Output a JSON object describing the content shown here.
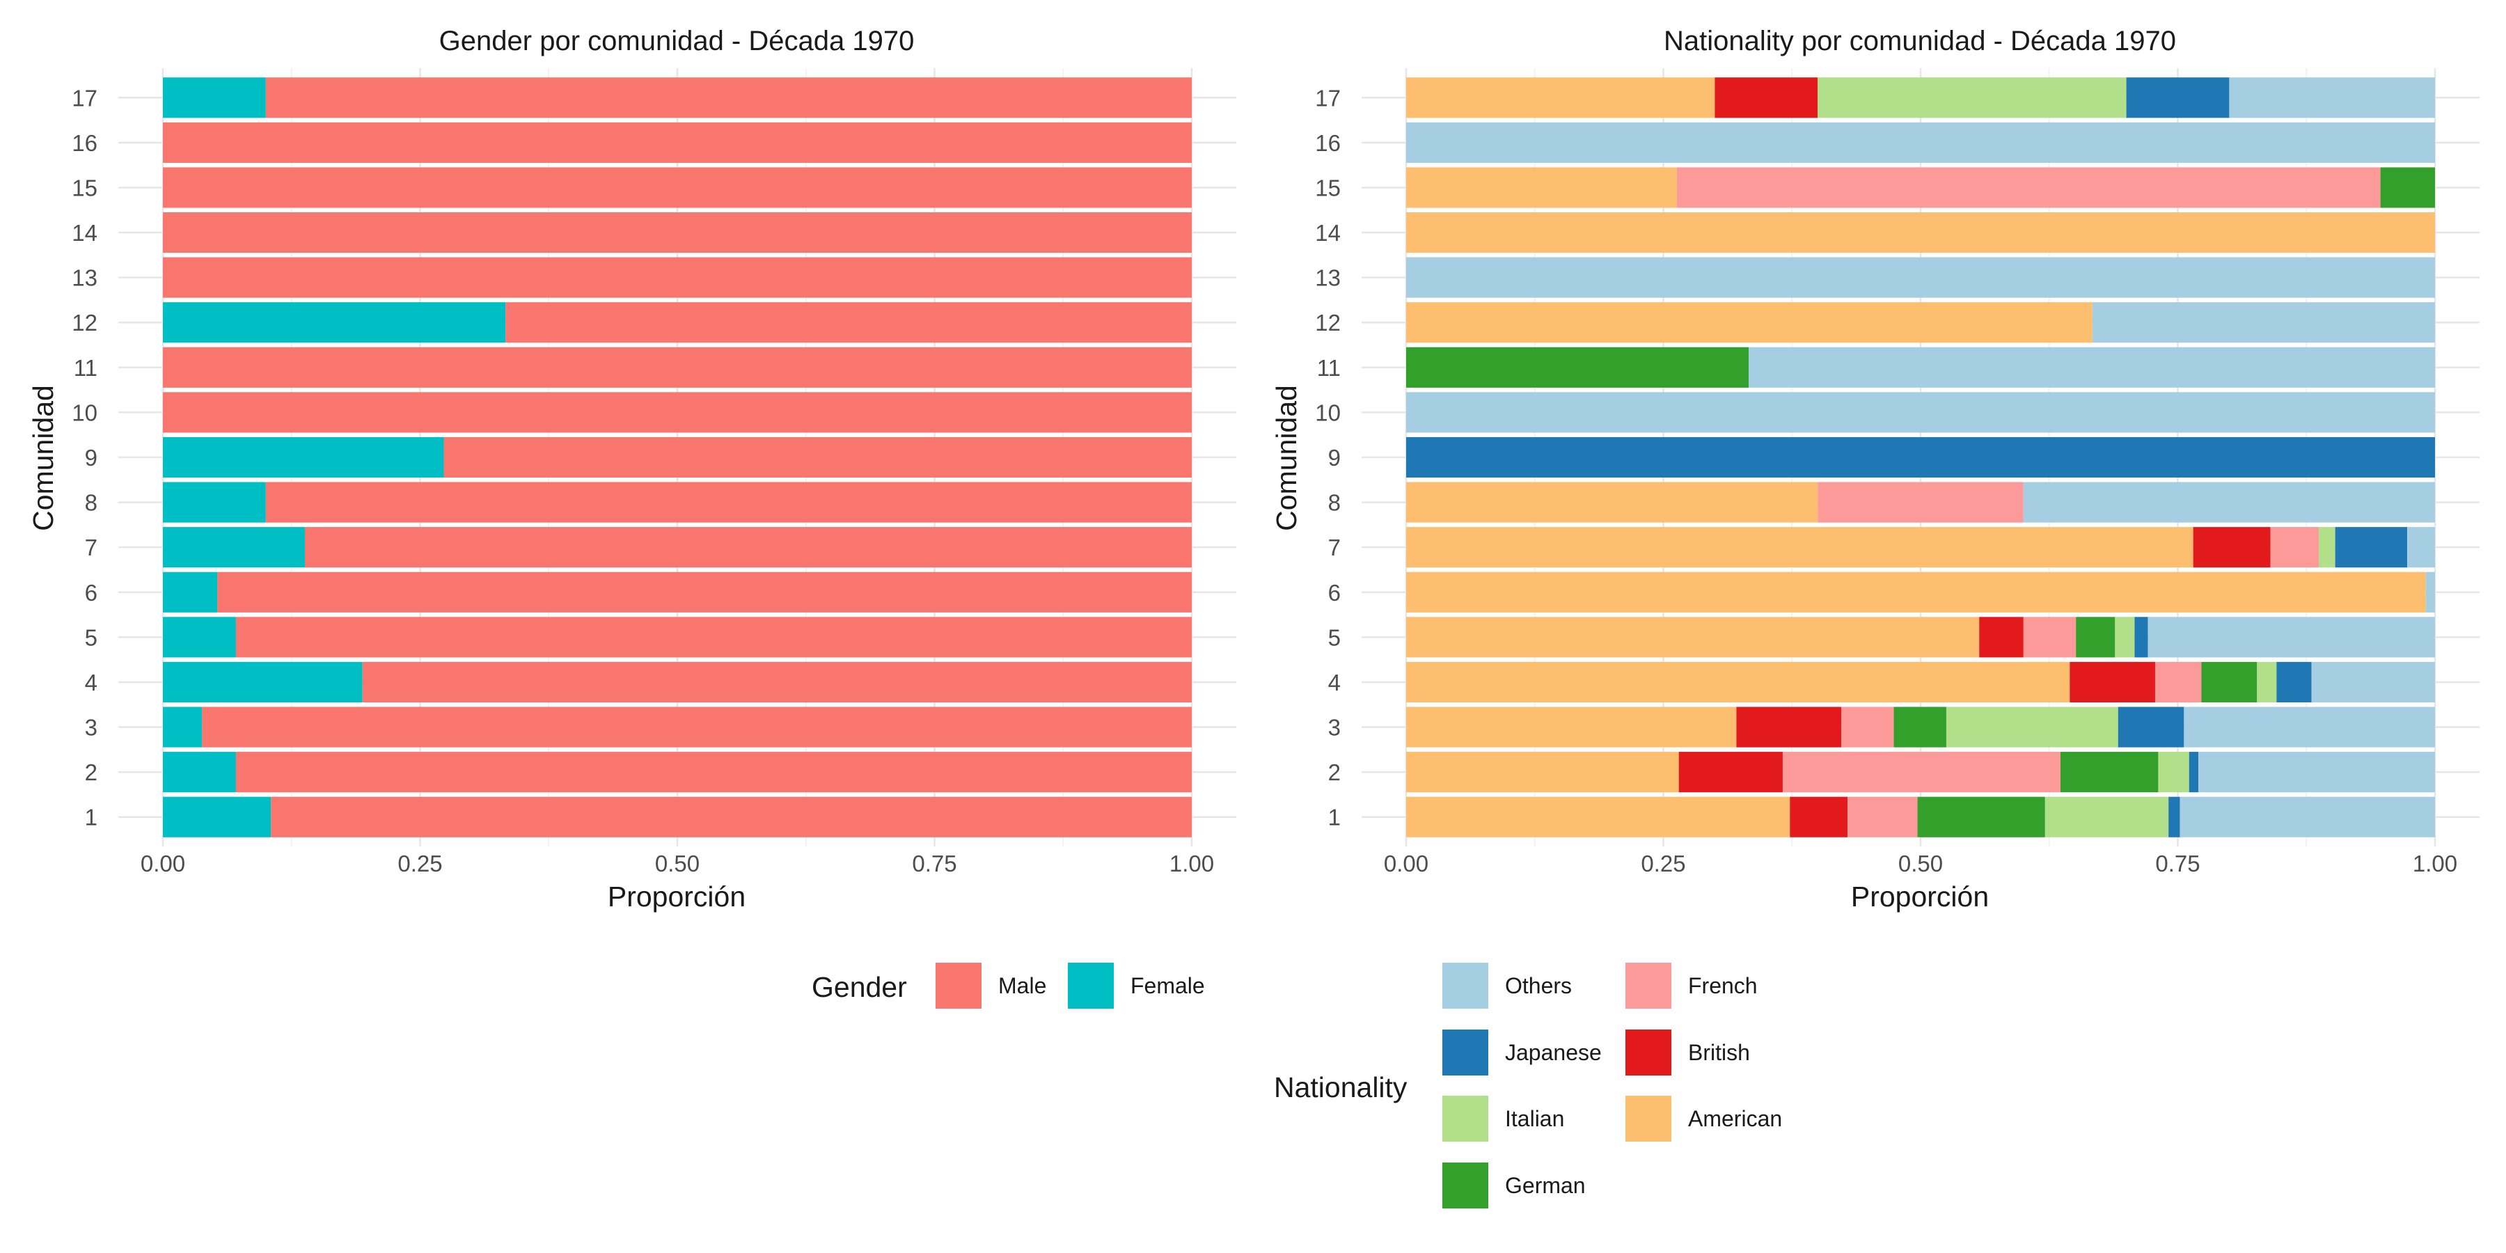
{
  "chart_data": [
    {
      "type": "bar",
      "orientation": "horizontal",
      "stacked": true,
      "title": "Gender por comunidad - Década 1970",
      "xlabel": "Proporción",
      "ylabel": "Comunidad",
      "xlim": [
        0,
        1
      ],
      "xticks": [
        "0.00",
        "0.25",
        "0.50",
        "0.75",
        "1.00"
      ],
      "grid": true,
      "legend_position": "bottom",
      "legend_title": "Gender",
      "categories": [
        "1",
        "2",
        "3",
        "4",
        "5",
        "6",
        "7",
        "8",
        "9",
        "10",
        "11",
        "12",
        "13",
        "14",
        "15",
        "16",
        "17"
      ],
      "series": [
        {
          "name": "Female",
          "color": "#00BFC4",
          "values": [
            0.105,
            0.071,
            0.038,
            0.194,
            0.071,
            0.053,
            0.138,
            0.1,
            0.273,
            0,
            0,
            0.333,
            0,
            0,
            0,
            0,
            0.1
          ]
        },
        {
          "name": "Male",
          "color": "#F8766D",
          "values": [
            0.895,
            0.929,
            0.962,
            0.806,
            0.929,
            0.947,
            0.862,
            0.9,
            0.727,
            1,
            1,
            0.667,
            1,
            1,
            1,
            1,
            0.9
          ]
        }
      ],
      "legend": [
        "Male",
        "Female"
      ]
    },
    {
      "type": "bar",
      "orientation": "horizontal",
      "stacked": true,
      "title": "Nationality por comunidad - Década 1970",
      "xlabel": "Proporción",
      "ylabel": "Comunidad",
      "xlim": [
        0,
        1
      ],
      "xticks": [
        "0.00",
        "0.25",
        "0.50",
        "0.75",
        "1.00"
      ],
      "grid": true,
      "legend_position": "bottom",
      "legend_title": "Nationality",
      "categories": [
        "1",
        "2",
        "3",
        "4",
        "5",
        "6",
        "7",
        "8",
        "9",
        "10",
        "11",
        "12",
        "13",
        "14",
        "15",
        "16",
        "17"
      ],
      "series": [
        {
          "name": "American",
          "color": "#FDBF6F",
          "values": [
            0.373,
            0.265,
            0.321,
            0.645,
            0.557,
            0.991,
            0.765,
            0.4,
            0,
            0,
            0,
            0.667,
            0,
            1,
            0.263,
            0,
            0.3
          ]
        },
        {
          "name": "British",
          "color": "#E31A1C",
          "values": [
            0.056,
            0.101,
            0.102,
            0.083,
            0.043,
            0,
            0.075,
            0,
            0,
            0,
            0,
            0,
            0,
            0,
            0,
            0,
            0.1
          ]
        },
        {
          "name": "French",
          "color": "#FB9A99",
          "values": [
            0.068,
            0.27,
            0.051,
            0.045,
            0.051,
            0,
            0.047,
            0.2,
            0,
            0,
            0,
            0,
            0,
            0,
            0.684,
            0,
            0
          ]
        },
        {
          "name": "German",
          "color": "#33A02C",
          "values": [
            0.124,
            0.095,
            0.051,
            0.054,
            0.038,
            0,
            0,
            0,
            0,
            0,
            0.333,
            0,
            0,
            0,
            0.053,
            0,
            0
          ]
        },
        {
          "name": "Italian",
          "color": "#B2DF8A",
          "values": [
            0.12,
            0.03,
            0.167,
            0.019,
            0.019,
            0,
            0.016,
            0,
            0,
            0,
            0,
            0,
            0,
            0,
            0,
            0,
            0.3
          ]
        },
        {
          "name": "Japanese",
          "color": "#1F78B4",
          "values": [
            0.011,
            0.009,
            0.064,
            0.034,
            0.013,
            0,
            0.07,
            0,
            1,
            0,
            0,
            0,
            0,
            0,
            0,
            0,
            0.1
          ]
        },
        {
          "name": "Others",
          "color": "#A6CEE3",
          "values": [
            0.248,
            0.23,
            0.244,
            0.12,
            0.279,
            0.009,
            0.027,
            0.4,
            0,
            1,
            0.667,
            0.333,
            1,
            0,
            0,
            1,
            0.2
          ]
        }
      ],
      "legend": [
        "Others",
        "Japanese",
        "Italian",
        "German",
        "French",
        "British",
        "American"
      ]
    }
  ]
}
